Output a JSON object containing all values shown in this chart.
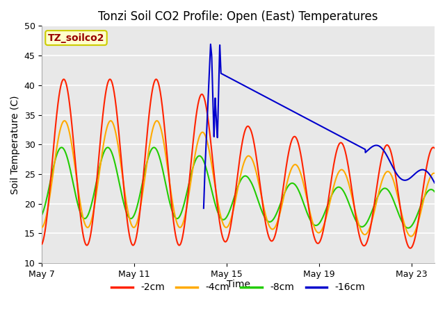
{
  "title": "Tonzi Soil CO2 Profile: Open (East) Temperatures",
  "xlabel": "Time",
  "ylabel": "Soil Temperature (C)",
  "ylim": [
    10,
    50
  ],
  "xlim_days": [
    0,
    17
  ],
  "background_color": "#e8e8e8",
  "plot_bg_color": "#e8e8e8",
  "grid_color": "#ffffff",
  "legend_label": "TZ_soilco2",
  "legend_bg": "#ffffcc",
  "legend_border": "#cccc00",
  "legend_text_color": "#990000",
  "series_colors": {
    "-2cm": "#ff2200",
    "-4cm": "#ffaa00",
    "-8cm": "#22cc00",
    "-16cm": "#0000cc"
  },
  "x_tick_labels": [
    "May 7",
    "May 11",
    "May 15",
    "May 19",
    "May 23"
  ],
  "x_tick_positions": [
    0,
    4,
    8,
    12,
    16
  ],
  "fig_width": 6.4,
  "fig_height": 4.8,
  "dpi": 100
}
